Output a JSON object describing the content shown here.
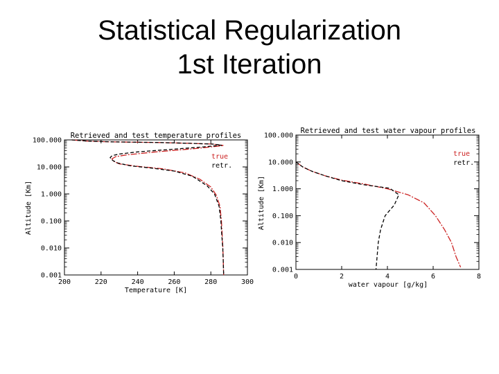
{
  "slide": {
    "title_line1": "Statistical Regularization",
    "title_line2": "1st Iteration"
  },
  "colors": {
    "true": "#cc2222",
    "retr": "#000000"
  },
  "chart_data": [
    {
      "type": "line",
      "title": "Retrieved and test temperature profiles",
      "xlabel": "Temperature [K]",
      "ylabel": "Altitude [Km]",
      "xlim": [
        200,
        300
      ],
      "ylim": [
        0.001,
        100
      ],
      "yscale": "log",
      "xticks": [
        200,
        220,
        240,
        260,
        280,
        300
      ],
      "xtick_labels": [
        "200",
        "220",
        "240",
        "260",
        "280",
        "300"
      ],
      "yticks": [
        100,
        10,
        1,
        0.1,
        0.01,
        0.001
      ],
      "ytick_labels": [
        "100.000",
        "10.000",
        "1.000",
        "0.100",
        "0.010",
        "0.001"
      ],
      "legend": [
        "true",
        "retr."
      ],
      "legend_position": "top-right",
      "series": [
        {
          "name": "true",
          "points": [
            [
              204,
              100
            ],
            [
              213,
              90
            ],
            [
              225,
              85
            ],
            [
              252,
              80
            ],
            [
              268,
              75
            ],
            [
              281,
              70
            ],
            [
              287,
              62
            ],
            [
              272,
              48
            ],
            [
              250,
              36
            ],
            [
              234,
              28
            ],
            [
              228,
              24
            ],
            [
              226,
              20
            ],
            [
              227,
              16
            ],
            [
              230,
              13
            ],
            [
              240,
              10.5
            ],
            [
              254,
              8.5
            ],
            [
              266,
              6
            ],
            [
              274,
              3.5
            ],
            [
              280,
              1.8
            ],
            [
              283,
              0.9
            ],
            [
              285,
              0.35
            ],
            [
              285.8,
              0.1
            ],
            [
              286.2,
              0.03
            ],
            [
              286.6,
              0.01
            ],
            [
              286.8,
              0.003
            ],
            [
              287,
              0.001
            ]
          ]
        },
        {
          "name": "retr.",
          "points": [
            [
              204,
              100
            ],
            [
              213,
              90
            ],
            [
              226,
              85
            ],
            [
              252,
              80
            ],
            [
              268,
              75
            ],
            [
              281,
              70
            ],
            [
              286,
              64
            ],
            [
              276,
              55
            ],
            [
              259,
              45
            ],
            [
              240,
              36
            ],
            [
              230,
              30
            ],
            [
              226,
              26
            ],
            [
              225,
              22
            ],
            [
              226,
              18
            ],
            [
              229,
              14
            ],
            [
              236,
              11
            ],
            [
              248,
              9
            ],
            [
              260,
              7
            ],
            [
              270,
              4.5
            ],
            [
              278,
              2
            ],
            [
              282,
              1
            ],
            [
              284.5,
              0.35
            ],
            [
              285.5,
              0.1
            ],
            [
              286,
              0.03
            ],
            [
              286.5,
              0.01
            ],
            [
              286.8,
              0.003
            ],
            [
              287,
              0.001
            ]
          ]
        }
      ]
    },
    {
      "type": "line",
      "title": "Retrieved and test water vapour profiles",
      "xlabel": "water vapour [g/kg]",
      "ylabel": "Altitude [Km]",
      "xlim": [
        0,
        8
      ],
      "ylim": [
        0.001,
        100
      ],
      "yscale": "log",
      "xticks": [
        0,
        2,
        4,
        6,
        8
      ],
      "xtick_labels": [
        "0",
        "2",
        "4",
        "6",
        "8"
      ],
      "yticks": [
        100,
        10,
        1,
        0.1,
        0.01,
        0.001
      ],
      "ytick_labels": [
        "100.000",
        "10.000",
        "1.000",
        "0.100",
        "0.010",
        "0.001"
      ],
      "legend": [
        "true",
        "retr."
      ],
      "legend_position": "top-right",
      "series": [
        {
          "name": "true",
          "points": [
            [
              0,
              10
            ],
            [
              0.3,
              6.5
            ],
            [
              0.7,
              4.5
            ],
            [
              1.3,
              3
            ],
            [
              2,
              2.1
            ],
            [
              3,
              1.5
            ],
            [
              4,
              1
            ],
            [
              4.9,
              0.6
            ],
            [
              5.6,
              0.3
            ],
            [
              6.1,
              0.1
            ],
            [
              6.5,
              0.03
            ],
            [
              6.8,
              0.01
            ],
            [
              7,
              0.003
            ],
            [
              7.2,
              0.0012
            ]
          ]
        },
        {
          "name": "retr.",
          "points": [
            [
              0,
              10
            ],
            [
              0.3,
              6.5
            ],
            [
              0.7,
              4.5
            ],
            [
              1.3,
              3
            ],
            [
              2,
              2
            ],
            [
              3,
              1.4
            ],
            [
              4.1,
              1.05
            ],
            [
              4.5,
              0.6
            ],
            [
              4.3,
              0.25
            ],
            [
              3.9,
              0.1
            ],
            [
              3.7,
              0.03
            ],
            [
              3.6,
              0.01
            ],
            [
              3.55,
              0.003
            ],
            [
              3.5,
              0.001
            ]
          ]
        }
      ]
    }
  ]
}
